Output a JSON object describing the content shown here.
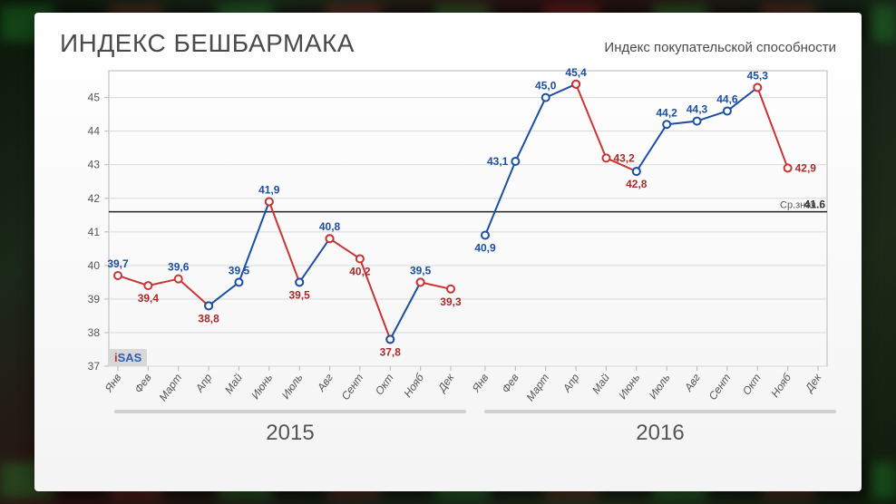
{
  "title": "ИНДЕКС БЕШБАРМАКА",
  "subtitle": "Индекс покупательской способности",
  "logo": {
    "pre": "i",
    "main": "SAS"
  },
  "chart": {
    "type": "line",
    "ylim": [
      37,
      45.8
    ],
    "yticks": [
      37,
      38,
      39,
      40,
      41,
      42,
      43,
      44,
      45
    ],
    "months": [
      "Янв",
      "Фев",
      "Март",
      "Апр",
      "Май",
      "Июнь",
      "Июль",
      "Авг",
      "Сент",
      "Окт",
      "Нояб",
      "Дек"
    ],
    "year_labels": [
      "2015",
      "2016"
    ],
    "mean_value": 41.6,
    "mean_label_prefix": "Ср.знач.:",
    "grid_color": "#d9d9d9",
    "axis_color": "#b8b8b8",
    "background_color": "#ffffff",
    "mean_color": "#222222",
    "label_fontsize": 12,
    "point_radius": 4,
    "point_fill": "#ffffff",
    "line_width": 2,
    "years": [
      {
        "year": "2015",
        "segments": [
          {
            "color": "#cc3333",
            "label_color": "#a82a2a",
            "label_pos": "below",
            "points": [
              {
                "m": 0,
                "v": 39.7,
                "label_color": "#1a4fa3",
                "label_pos": "above"
              },
              {
                "m": 1,
                "v": 39.4
              },
              {
                "m": 2,
                "v": 39.6,
                "label_color": "#1a4fa3",
                "label_pos": "above"
              },
              {
                "m": 3,
                "v": 38.8
              }
            ]
          },
          {
            "color": "#1a4fa3",
            "label_color": "#1a4fa3",
            "label_pos": "above",
            "points": [
              {
                "m": 3,
                "v": 38.8,
                "skip_label": true
              },
              {
                "m": 4,
                "v": 39.5
              },
              {
                "m": 5,
                "v": 41.9
              }
            ]
          },
          {
            "color": "#cc3333",
            "label_color": "#a82a2a",
            "label_pos": "below",
            "points": [
              {
                "m": 5,
                "v": 41.9,
                "skip_label": true
              },
              {
                "m": 6,
                "v": 39.5
              }
            ]
          },
          {
            "color": "#1a4fa3",
            "label_color": "#1a4fa3",
            "label_pos": "above",
            "points": [
              {
                "m": 6,
                "v": 39.5,
                "skip_label": true
              },
              {
                "m": 7,
                "v": 40.8
              }
            ]
          },
          {
            "color": "#cc3333",
            "label_color": "#a82a2a",
            "label_pos": "below",
            "points": [
              {
                "m": 7,
                "v": 40.8,
                "skip_label": true
              },
              {
                "m": 8,
                "v": 40.2
              },
              {
                "m": 9,
                "v": 37.8
              }
            ]
          },
          {
            "color": "#1a4fa3",
            "label_color": "#1a4fa3",
            "label_pos": "above",
            "points": [
              {
                "m": 9,
                "v": 37.8,
                "skip_label": true
              },
              {
                "m": 10,
                "v": 39.5
              }
            ]
          },
          {
            "color": "#cc3333",
            "label_color": "#a82a2a",
            "label_pos": "below",
            "points": [
              {
                "m": 10,
                "v": 39.5,
                "skip_label": true
              },
              {
                "m": 11,
                "v": 39.3
              }
            ]
          }
        ]
      },
      {
        "year": "2016",
        "segments": [
          {
            "color": "#1a4fa3",
            "label_color": "#1a4fa3",
            "label_pos": "above",
            "points": [
              {
                "m": 0,
                "v": 40.9,
                "label_pos": "below"
              },
              {
                "m": 1,
                "v": 43.1,
                "label_pos": "left"
              },
              {
                "m": 2,
                "v": 45.0
              },
              {
                "m": 3,
                "v": 45.4
              }
            ]
          },
          {
            "color": "#cc3333",
            "label_color": "#a82a2a",
            "label_pos": "below",
            "points": [
              {
                "m": 3,
                "v": 45.4,
                "skip_label": true
              },
              {
                "m": 4,
                "v": 43.2,
                "label_pos": "right"
              },
              {
                "m": 5,
                "v": 42.8
              }
            ]
          },
          {
            "color": "#1a4fa3",
            "label_color": "#1a4fa3",
            "label_pos": "above",
            "points": [
              {
                "m": 5,
                "v": 42.8,
                "skip_label": true
              },
              {
                "m": 6,
                "v": 44.2
              },
              {
                "m": 7,
                "v": 44.3
              },
              {
                "m": 8,
                "v": 44.6
              },
              {
                "m": 9,
                "v": 45.3
              }
            ]
          },
          {
            "color": "#cc3333",
            "label_color": "#a82a2a",
            "label_pos": "right",
            "points": [
              {
                "m": 9,
                "v": 45.3,
                "skip_label": true
              },
              {
                "m": 10,
                "v": 42.9
              }
            ]
          }
        ]
      }
    ]
  }
}
